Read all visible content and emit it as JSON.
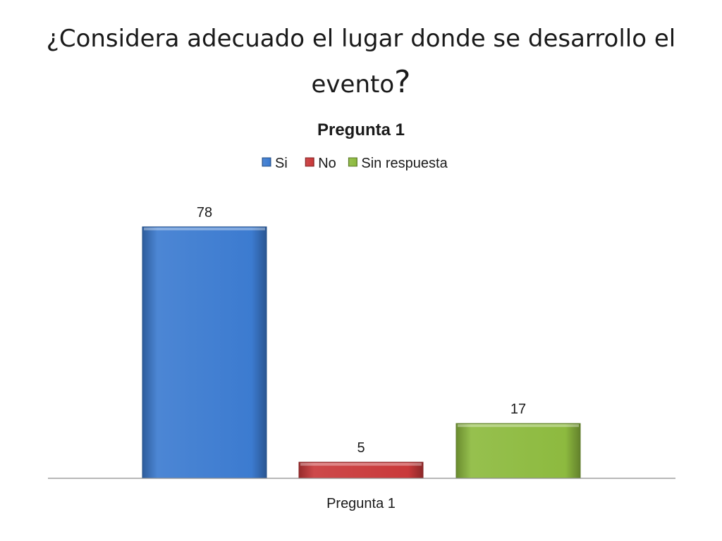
{
  "slide": {
    "title": "¿Considera adecuado el lugar donde se desarrollo el evento",
    "title_suffix": "?"
  },
  "chart_data": {
    "type": "bar",
    "title": "Pregunta 1",
    "categories": [
      "Pregunta 1"
    ],
    "series": [
      {
        "name": "Si",
        "values": [
          78
        ],
        "color": "#3C7BD0"
      },
      {
        "name": "No",
        "values": [
          5
        ],
        "color": "#C9393A"
      },
      {
        "name": "Sin respuesta",
        "values": [
          17
        ],
        "color": "#8DBA3F"
      }
    ],
    "xlabel": "",
    "ylabel": "",
    "ylim": [
      0,
      78
    ],
    "data_labels": true,
    "legend": "top-center",
    "grid": false
  }
}
